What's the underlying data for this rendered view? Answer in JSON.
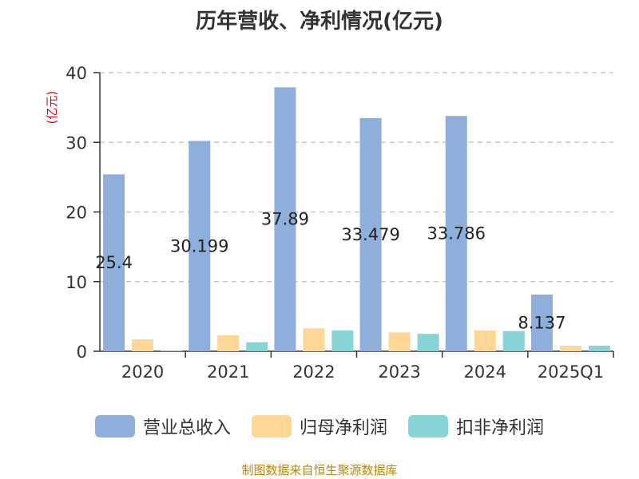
{
  "chart_data": {
    "type": "bar",
    "title": "历年营收、净利情况(亿元)",
    "ylabel": "(亿元)",
    "xlabel": "",
    "ylim": [
      0,
      40
    ],
    "yticks": [
      0,
      10,
      20,
      30,
      40
    ],
    "grid": true,
    "legend_position": "bottom",
    "categories": [
      "2020",
      "2021",
      "2022",
      "2023",
      "2024",
      "2025Q1"
    ],
    "series": [
      {
        "name": "营业总收入",
        "color": "#8eaedb",
        "values": [
          25.4,
          30.199,
          37.89,
          33.479,
          33.786,
          8.137
        ],
        "labels": [
          "25.4",
          "30.199",
          "37.89",
          "33.479",
          "33.786",
          "8.137"
        ]
      },
      {
        "name": "归母净利润",
        "color": "#fed696",
        "values": [
          1.7,
          2.3,
          3.3,
          2.7,
          3.0,
          0.8
        ]
      },
      {
        "name": "扣非净利润",
        "color": "#86d4d6",
        "values": [
          0.1,
          1.3,
          3.0,
          2.5,
          2.9,
          0.8
        ]
      }
    ]
  },
  "source": "制图数据来自恒生聚源数据库"
}
